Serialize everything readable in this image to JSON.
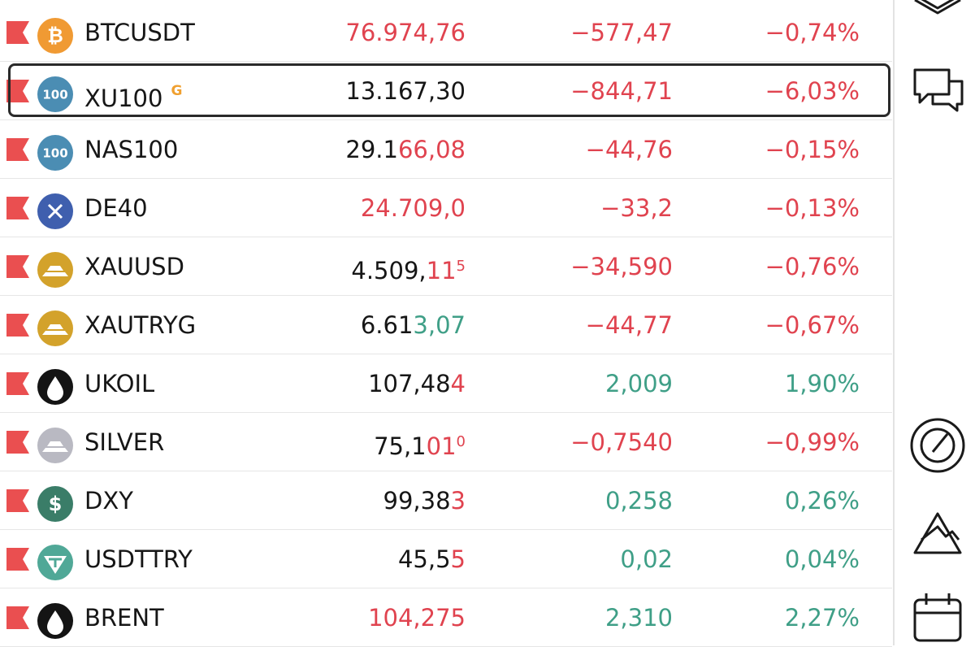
{
  "colors": {
    "down": "#e0434f",
    "up": "#3f9f87",
    "neutral": "#161616",
    "badge": "#f0a030"
  },
  "rows": [
    {
      "symbol": "BTCUSDT",
      "icon": "bitcoin",
      "icon_color": "#f09a33",
      "icon_label": "₿",
      "price": [
        {
          "text": "76.974,76",
          "tone": "down"
        }
      ],
      "change": "−577,47",
      "change_tone": "down",
      "percent": "−0,74%",
      "percent_tone": "down"
    },
    {
      "symbol": "XU100",
      "badge": "G",
      "selected": true,
      "icon": "index",
      "icon_color": "#4b8db3",
      "icon_label": "100",
      "price": [
        {
          "text": "13.167,30",
          "tone": "neutral"
        }
      ],
      "change": "−844,71",
      "change_tone": "down",
      "percent": "−6,03%",
      "percent_tone": "down"
    },
    {
      "symbol": "NAS100",
      "icon": "index",
      "icon_color": "#4b8db3",
      "icon_label": "100",
      "price": [
        {
          "text": "29.1",
          "tone": "neutral"
        },
        {
          "text": "66,08",
          "tone": "down"
        }
      ],
      "change": "−44,76",
      "change_tone": "down",
      "percent": "−0,15%",
      "percent_tone": "down"
    },
    {
      "symbol": "DE40",
      "icon": "cross",
      "icon_color": "#3f5fae",
      "price": [
        {
          "text": "24.709,0",
          "tone": "down"
        }
      ],
      "change": "−33,2",
      "change_tone": "down",
      "percent": "−0,13%",
      "percent_tone": "down"
    },
    {
      "symbol": "XAUUSD",
      "icon": "bars",
      "icon_color": "#d3a22b",
      "price": [
        {
          "text": "4.509,",
          "tone": "neutral"
        },
        {
          "text": "11",
          "tone": "down"
        },
        {
          "text": "5",
          "tone": "down",
          "sup": true
        }
      ],
      "change": "−34,590",
      "change_tone": "down",
      "percent": "−0,76%",
      "percent_tone": "down"
    },
    {
      "symbol": "XAUTRYG",
      "icon": "bars",
      "icon_color": "#d3a22b",
      "price": [
        {
          "text": "6.61",
          "tone": "neutral"
        },
        {
          "text": "3,07",
          "tone": "up"
        }
      ],
      "change": "−44,77",
      "change_tone": "down",
      "percent": "−0,67%",
      "percent_tone": "down"
    },
    {
      "symbol": "UKOIL",
      "icon": "drop",
      "icon_color": "#141414",
      "price": [
        {
          "text": "107,48",
          "tone": "neutral"
        },
        {
          "text": "4",
          "tone": "down"
        }
      ],
      "change": "2,009",
      "change_tone": "up",
      "percent": "1,90%",
      "percent_tone": "up"
    },
    {
      "symbol": "SILVER",
      "icon": "bars",
      "icon_color": "#b9b9c2",
      "price": [
        {
          "text": "75,1",
          "tone": "neutral"
        },
        {
          "text": "01",
          "tone": "down"
        },
        {
          "text": "0",
          "tone": "down",
          "sup": true
        }
      ],
      "change": "−0,7540",
      "change_tone": "down",
      "percent": "−0,99%",
      "percent_tone": "down"
    },
    {
      "symbol": "DXY",
      "icon": "dollar",
      "icon_color": "#3a7d68",
      "icon_label": "$",
      "price": [
        {
          "text": "99,38",
          "tone": "neutral"
        },
        {
          "text": "3",
          "tone": "down"
        }
      ],
      "change": "0,258",
      "change_tone": "up",
      "percent": "0,26%",
      "percent_tone": "up"
    },
    {
      "symbol": "USDTTRY",
      "icon": "tether",
      "icon_color": "#50a897",
      "price": [
        {
          "text": "45,5",
          "tone": "neutral"
        },
        {
          "text": "5",
          "tone": "down"
        }
      ],
      "change": "0,02",
      "change_tone": "up",
      "percent": "0,04%",
      "percent_tone": "up"
    },
    {
      "symbol": "BRENT",
      "icon": "drop",
      "icon_color": "#141414",
      "price": [
        {
          "text": "104,275",
          "tone": "down"
        }
      ],
      "change": "2,310",
      "change_tone": "up",
      "percent": "2,27%",
      "percent_tone": "up"
    }
  ]
}
